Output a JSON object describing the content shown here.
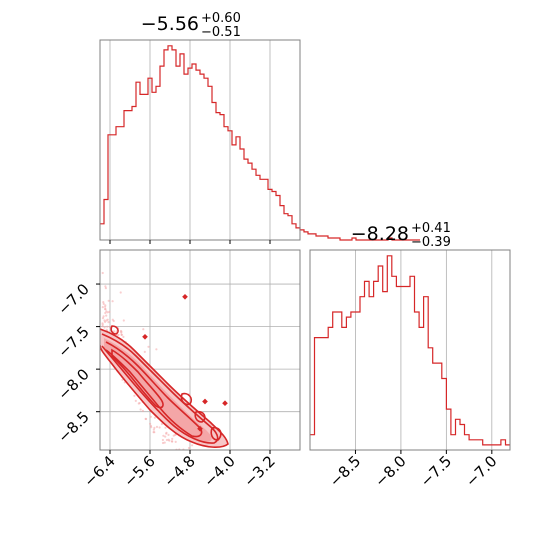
{
  "colors": {
    "main": "#d62728",
    "fill": "#f4a6a7",
    "light": "#f7c6c7",
    "grid": "#b0b0b0",
    "frame": "#808080"
  },
  "chart_data": [
    {
      "type": "histogram",
      "panel": "top-left",
      "title": {
        "main": "−5.56",
        "sup": "+0.60",
        "sub": "−0.51"
      },
      "xlim": [
        -6.6,
        -2.6
      ],
      "x_ticks": [
        -6.4,
        -5.6,
        -4.8,
        -4.0,
        -3.2
      ],
      "bin_width": 0.08,
      "counts": [
        8,
        20,
        52,
        52,
        56,
        56,
        64,
        64,
        66,
        78,
        72,
        72,
        80,
        73,
        76,
        86,
        94,
        96,
        94,
        86,
        92,
        82,
        85,
        87,
        84,
        82,
        80,
        76,
        68,
        63,
        62,
        56,
        54,
        47,
        51,
        45,
        40,
        38,
        35,
        32,
        30,
        30,
        25,
        24,
        22,
        17,
        13,
        12,
        8,
        6,
        5,
        4,
        3,
        3,
        2,
        2,
        2,
        1,
        1,
        1,
        0,
        0,
        0,
        1,
        0,
        0,
        0,
        0,
        0,
        0,
        0,
        0,
        1,
        0,
        0,
        0,
        0,
        0,
        0,
        0
      ]
    },
    {
      "type": "histogram",
      "panel": "bottom-right",
      "title": {
        "main": "−8.28",
        "sup": "+0.41",
        "sub": "−0.39"
      },
      "xlim": [
        -9.0,
        -6.8
      ],
      "x_ticks": [
        -8.5,
        -8.0,
        -7.5,
        -7.0
      ],
      "x_tick_labels": [
        "−8.5",
        "−8.0",
        "−7.5",
        "−7.0"
      ],
      "bin_width": 0.05,
      "counts": [
        3,
        22,
        22,
        22,
        24,
        27,
        27,
        24,
        26,
        27,
        27,
        30,
        33,
        30,
        33,
        36,
        31,
        38,
        34,
        32,
        32,
        32,
        34,
        27,
        24,
        30,
        20,
        17,
        17,
        14,
        8,
        3,
        6,
        5,
        3,
        2,
        2,
        2,
        1,
        1,
        1,
        1,
        2,
        1
      ]
    },
    {
      "type": "contour",
      "panel": "bottom-left",
      "xlim": [
        -6.6,
        -2.6
      ],
      "ylim": [
        -8.95,
        -6.6
      ],
      "x_ticks": [
        -6.4,
        -5.6,
        -4.8,
        -4.0,
        -3.2
      ],
      "x_tick_labels": [
        "−6.4",
        "−5.6",
        "−4.8",
        "−4.0",
        "−3.2"
      ],
      "y_ticks": [
        -7.0,
        -7.5,
        -8.0,
        -8.5
      ],
      "y_tick_labels": [
        "−7.0",
        "−7.5",
        "−8.0",
        "−8.5"
      ],
      "relation": "x + y ≈ -14.0 (anti-correlated band)",
      "outliers": [
        [
          -4.9,
          -7.15
        ],
        [
          -4.5,
          -8.38
        ],
        [
          -4.1,
          -8.4
        ],
        [
          -5.7,
          -7.62
        ],
        [
          -4.6,
          -8.7
        ]
      ]
    }
  ]
}
